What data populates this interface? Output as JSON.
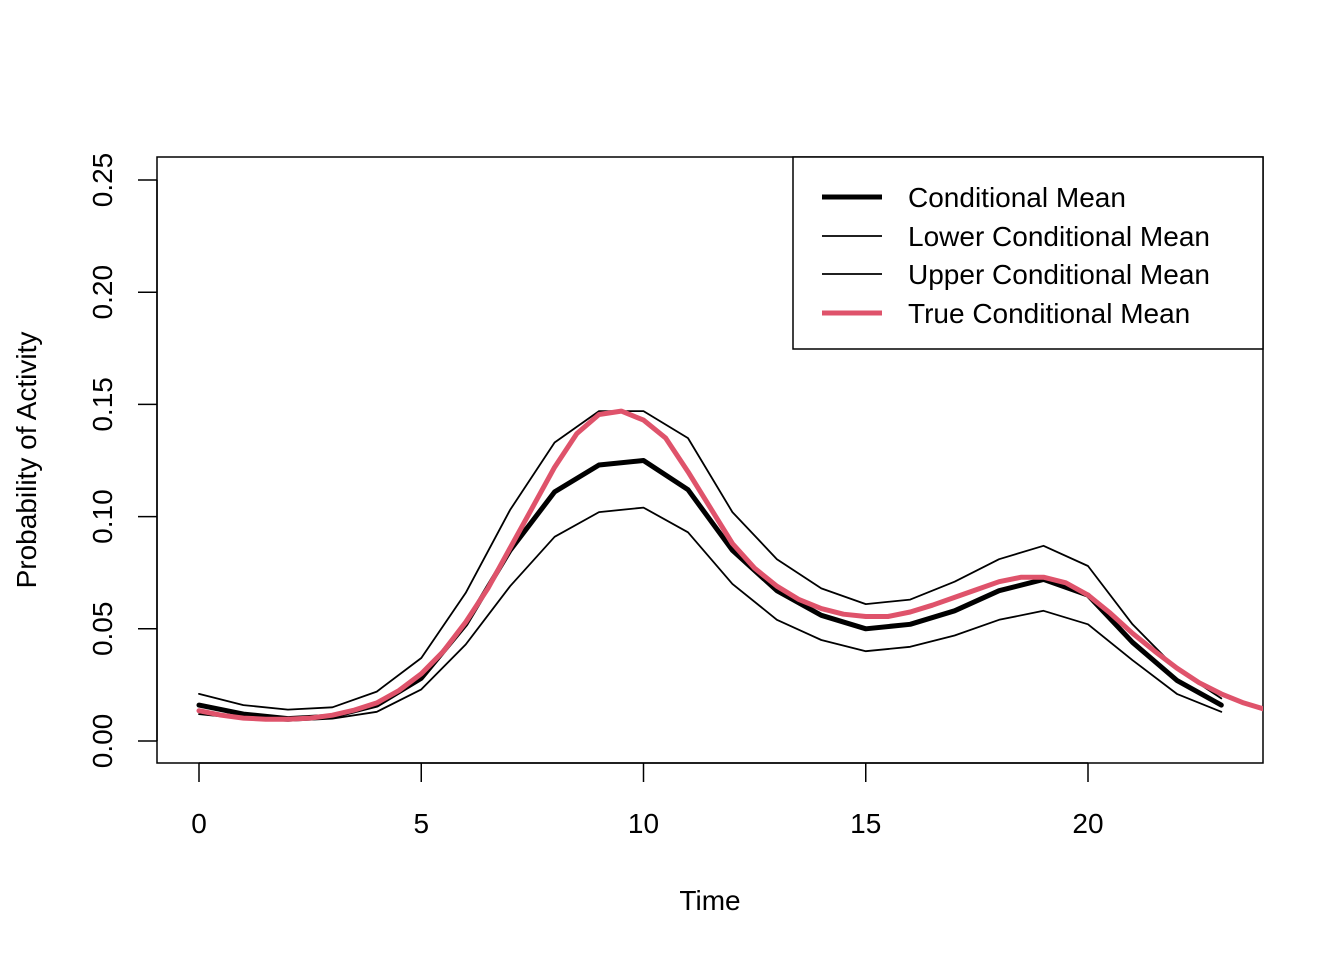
{
  "chart_data": {
    "type": "line",
    "title": "",
    "xlabel": "Time",
    "ylabel": "Probability of Activity",
    "xlim": [
      -1,
      24
    ],
    "ylim": [
      -0.01,
      0.26
    ],
    "x_ticks": [
      0,
      5,
      10,
      15,
      20
    ],
    "x_tick_labels": [
      "0",
      "5",
      "10",
      "15",
      "20"
    ],
    "y_ticks": [
      0.0,
      0.05,
      0.1,
      0.15,
      0.2,
      0.25
    ],
    "y_tick_labels": [
      "0.00",
      "0.05",
      "0.10",
      "0.15",
      "0.20",
      "0.25"
    ],
    "grid": false,
    "legend_position": "top-right",
    "series": [
      {
        "name": "Conditional Mean",
        "color": "#000000",
        "style": "thick",
        "x": [
          0,
          1,
          2,
          3,
          4,
          5,
          6,
          7,
          8,
          9,
          10,
          11,
          12,
          13,
          14,
          15,
          16,
          17,
          18,
          19,
          20,
          21,
          22,
          23
        ],
        "values": [
          0.016,
          0.012,
          0.01,
          0.011,
          0.016,
          0.028,
          0.052,
          0.085,
          0.111,
          0.123,
          0.125,
          0.112,
          0.085,
          0.067,
          0.056,
          0.05,
          0.052,
          0.058,
          0.067,
          0.072,
          0.065,
          0.044,
          0.027,
          0.016
        ]
      },
      {
        "name": "Lower Conditional Mean",
        "color": "#000000",
        "style": "thin",
        "x": [
          0,
          1,
          2,
          3,
          4,
          5,
          6,
          7,
          8,
          9,
          10,
          11,
          12,
          13,
          14,
          15,
          16,
          17,
          18,
          19,
          20,
          21,
          22,
          23
        ],
        "values": [
          0.012,
          0.01,
          0.009,
          0.01,
          0.013,
          0.023,
          0.043,
          0.069,
          0.091,
          0.102,
          0.104,
          0.093,
          0.07,
          0.054,
          0.045,
          0.04,
          0.042,
          0.047,
          0.054,
          0.058,
          0.052,
          0.036,
          0.021,
          0.013
        ]
      },
      {
        "name": "Upper Conditional Mean",
        "color": "#000000",
        "style": "thin",
        "x": [
          0,
          1,
          2,
          3,
          4,
          5,
          6,
          7,
          8,
          9,
          10,
          11,
          12,
          13,
          14,
          15,
          16,
          17,
          18,
          19,
          20,
          21,
          22,
          23
        ],
        "values": [
          0.021,
          0.016,
          0.014,
          0.015,
          0.022,
          0.037,
          0.066,
          0.103,
          0.133,
          0.147,
          0.147,
          0.135,
          0.102,
          0.081,
          0.068,
          0.061,
          0.063,
          0.071,
          0.081,
          0.087,
          0.078,
          0.052,
          0.032,
          0.019
        ]
      },
      {
        "name": "True Conditional Mean",
        "color": "#DF536B",
        "style": "thick",
        "x": [
          0,
          0.5,
          1,
          1.5,
          2,
          2.5,
          3,
          3.5,
          4,
          4.5,
          5,
          5.5,
          6,
          6.5,
          7,
          7.5,
          8,
          8.5,
          9,
          9.5,
          10,
          10.5,
          11,
          11.5,
          12,
          12.5,
          13,
          13.5,
          14,
          14.5,
          15,
          15.5,
          16,
          16.5,
          17,
          17.5,
          18,
          18.5,
          19,
          19.5,
          20,
          20.5,
          21,
          21.5,
          22,
          22.5,
          23,
          23.5,
          24
        ],
        "values": [
          0.0135,
          0.0115,
          0.0102,
          0.0097,
          0.0097,
          0.0102,
          0.0115,
          0.0138,
          0.017,
          0.0225,
          0.03,
          0.04,
          0.053,
          0.068,
          0.086,
          0.104,
          0.122,
          0.137,
          0.1455,
          0.147,
          0.143,
          0.135,
          0.12,
          0.104,
          0.088,
          0.077,
          0.069,
          0.063,
          0.059,
          0.0565,
          0.0555,
          0.0555,
          0.0575,
          0.0605,
          0.064,
          0.0675,
          0.071,
          0.073,
          0.073,
          0.0705,
          0.065,
          0.057,
          0.048,
          0.04,
          0.0325,
          0.026,
          0.021,
          0.017,
          0.014
        ]
      }
    ]
  }
}
